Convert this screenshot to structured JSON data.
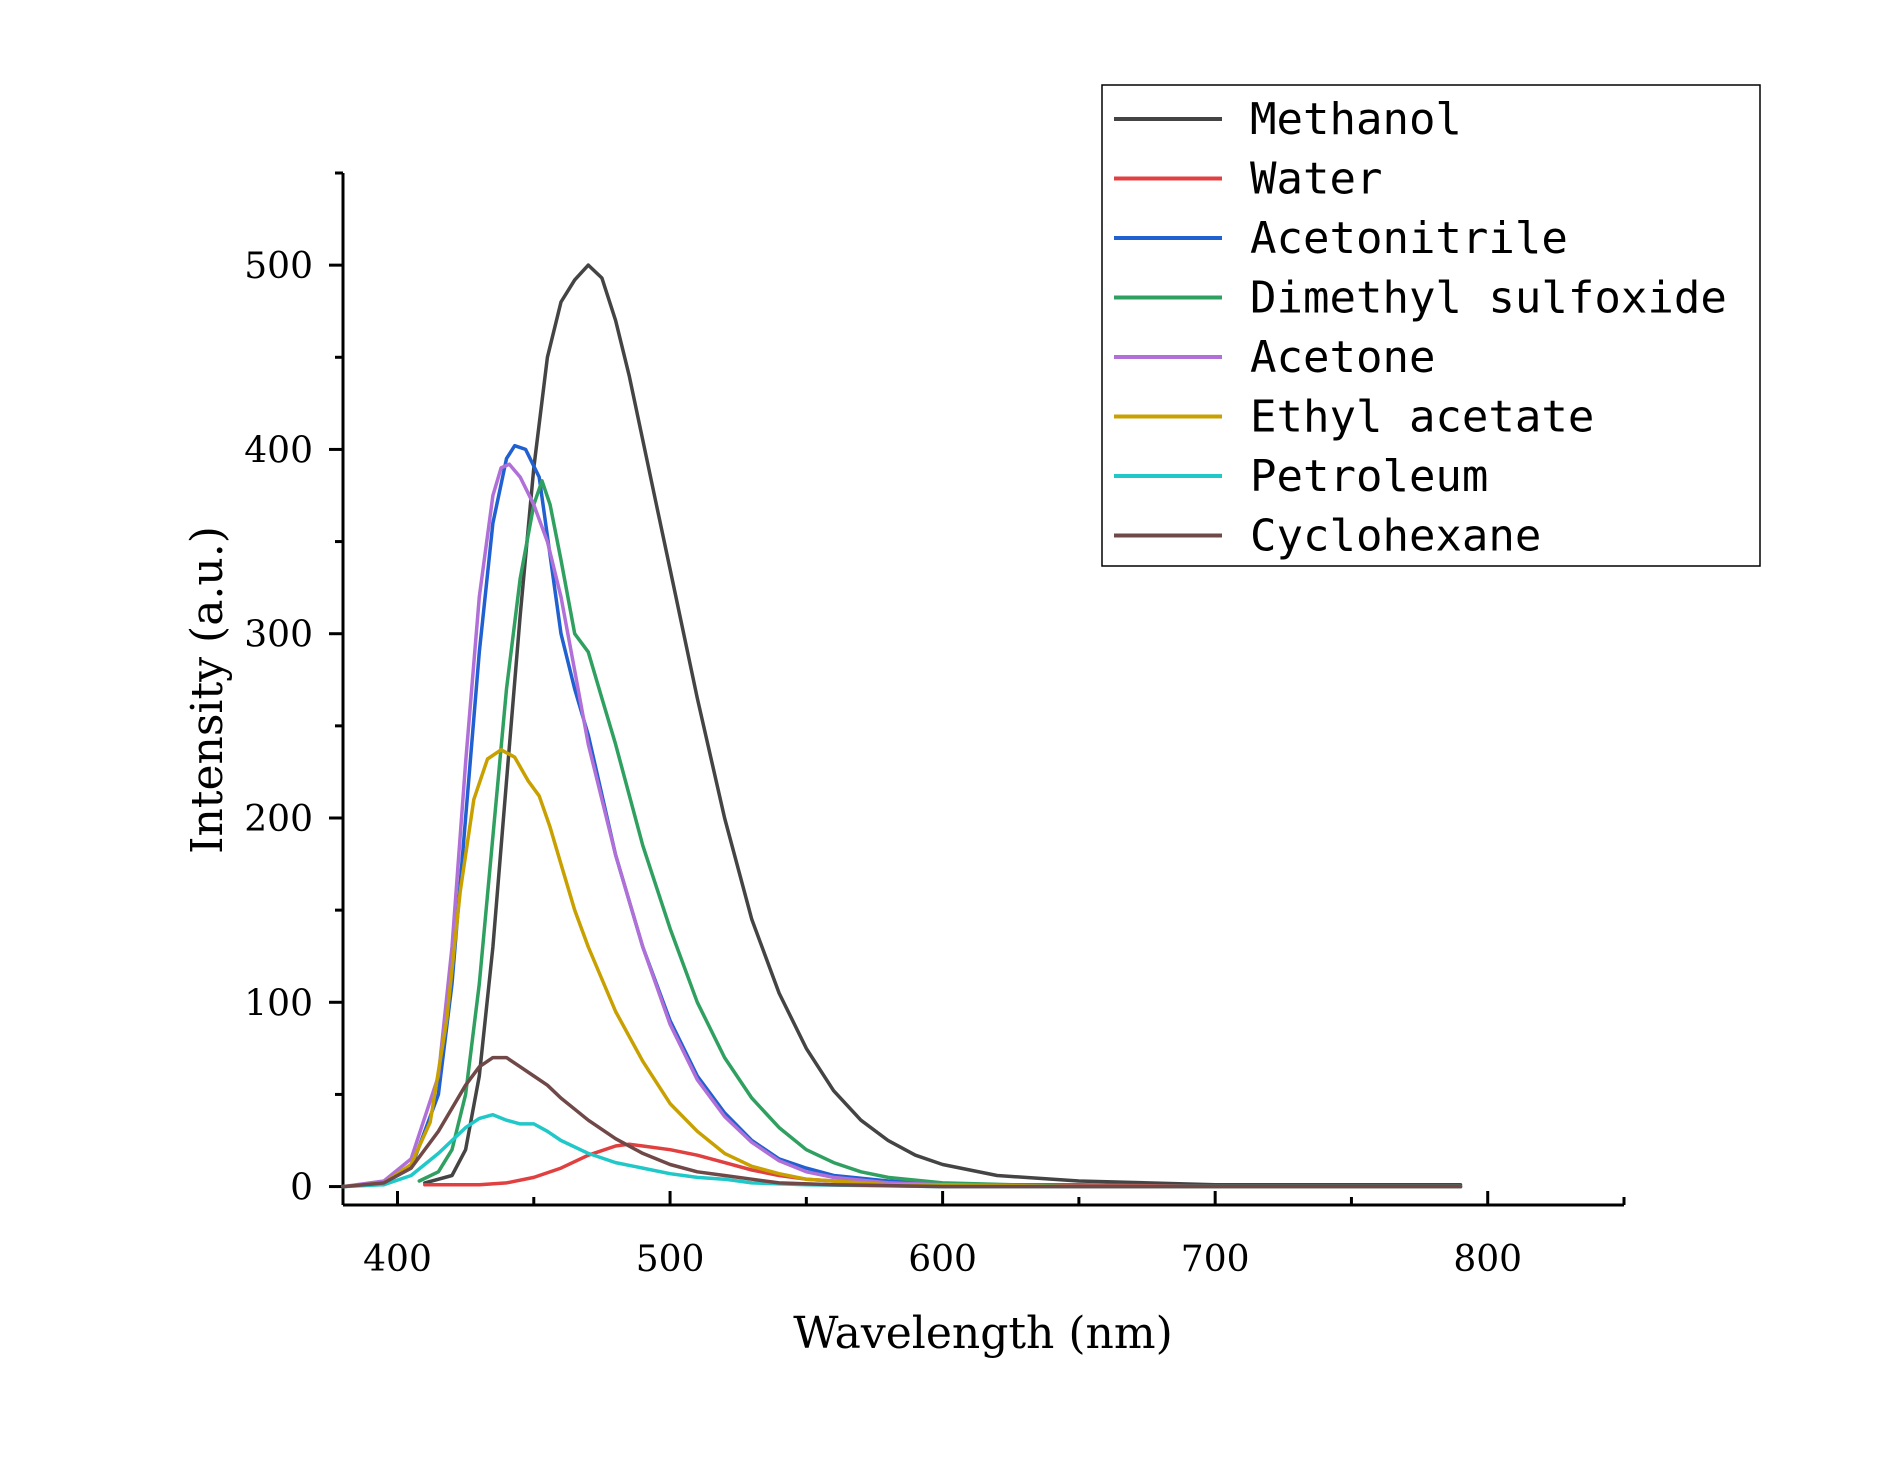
{
  "chart_data": {
    "type": "line",
    "title": "",
    "xlabel": "Wavelength (nm)",
    "ylabel": "Intensity (a.u.)",
    "xlim": [
      380,
      850
    ],
    "ylim": [
      -10,
      550
    ],
    "xticks": [
      400,
      500,
      600,
      700,
      800
    ],
    "xtick_labels": [
      "400",
      "500",
      "600",
      "700",
      "800"
    ],
    "yticks": [
      0,
      100,
      200,
      300,
      400,
      500
    ],
    "ytick_labels": [
      "0",
      "100",
      "200",
      "300",
      "400",
      "500"
    ],
    "grid": false,
    "legend_position": "top-right",
    "series": [
      {
        "name": "Methanol",
        "color": "#444444",
        "points": [
          [
            410,
            2
          ],
          [
            420,
            6
          ],
          [
            425,
            20
          ],
          [
            430,
            60
          ],
          [
            435,
            130
          ],
          [
            440,
            220
          ],
          [
            445,
            310
          ],
          [
            450,
            390
          ],
          [
            455,
            450
          ],
          [
            460,
            480
          ],
          [
            465,
            492
          ],
          [
            470,
            500
          ],
          [
            475,
            493
          ],
          [
            480,
            470
          ],
          [
            485,
            440
          ],
          [
            490,
            405
          ],
          [
            495,
            370
          ],
          [
            500,
            335
          ],
          [
            510,
            265
          ],
          [
            520,
            200
          ],
          [
            530,
            145
          ],
          [
            540,
            105
          ],
          [
            550,
            75
          ],
          [
            560,
            52
          ],
          [
            570,
            36
          ],
          [
            580,
            25
          ],
          [
            590,
            17
          ],
          [
            600,
            12
          ],
          [
            620,
            6
          ],
          [
            650,
            3
          ],
          [
            700,
            1
          ],
          [
            750,
            1
          ],
          [
            790,
            1
          ]
        ]
      },
      {
        "name": "Water",
        "color": "#e04040",
        "points": [
          [
            410,
            1
          ],
          [
            420,
            1
          ],
          [
            430,
            1
          ],
          [
            440,
            2
          ],
          [
            450,
            5
          ],
          [
            460,
            10
          ],
          [
            470,
            17
          ],
          [
            480,
            22
          ],
          [
            485,
            23
          ],
          [
            490,
            22
          ],
          [
            500,
            20
          ],
          [
            510,
            17
          ],
          [
            520,
            13
          ],
          [
            530,
            9
          ],
          [
            540,
            6
          ],
          [
            550,
            4
          ],
          [
            560,
            3
          ],
          [
            580,
            1
          ],
          [
            600,
            1
          ],
          [
            650,
            1
          ],
          [
            700,
            0
          ],
          [
            790,
            0
          ]
        ]
      },
      {
        "name": "Acetonitrile",
        "color": "#2060d0",
        "points": [
          [
            380,
            0
          ],
          [
            395,
            2
          ],
          [
            405,
            10
          ],
          [
            415,
            50
          ],
          [
            420,
            110
          ],
          [
            425,
            200
          ],
          [
            430,
            290
          ],
          [
            435,
            360
          ],
          [
            440,
            395
          ],
          [
            443,
            402
          ],
          [
            447,
            400
          ],
          [
            452,
            385
          ],
          [
            460,
            300
          ],
          [
            465,
            270
          ],
          [
            470,
            245
          ],
          [
            480,
            180
          ],
          [
            490,
            130
          ],
          [
            500,
            90
          ],
          [
            510,
            60
          ],
          [
            520,
            40
          ],
          [
            530,
            25
          ],
          [
            540,
            15
          ],
          [
            550,
            10
          ],
          [
            560,
            6
          ],
          [
            580,
            3
          ],
          [
            600,
            1
          ],
          [
            650,
            0
          ],
          [
            700,
            0
          ],
          [
            790,
            0
          ]
        ]
      },
      {
        "name": "Dimethyl sulfoxide",
        "color": "#30a060",
        "points": [
          [
            408,
            3
          ],
          [
            415,
            8
          ],
          [
            420,
            20
          ],
          [
            425,
            50
          ],
          [
            430,
            110
          ],
          [
            435,
            190
          ],
          [
            440,
            270
          ],
          [
            445,
            330
          ],
          [
            450,
            370
          ],
          [
            453,
            383
          ],
          [
            456,
            370
          ],
          [
            460,
            340
          ],
          [
            465,
            300
          ],
          [
            470,
            290
          ],
          [
            475,
            265
          ],
          [
            480,
            240
          ],
          [
            490,
            185
          ],
          [
            500,
            140
          ],
          [
            510,
            100
          ],
          [
            520,
            70
          ],
          [
            530,
            48
          ],
          [
            540,
            32
          ],
          [
            550,
            20
          ],
          [
            560,
            13
          ],
          [
            570,
            8
          ],
          [
            580,
            5
          ],
          [
            600,
            2
          ],
          [
            650,
            0
          ],
          [
            700,
            0
          ],
          [
            790,
            0
          ]
        ]
      },
      {
        "name": "Acetone",
        "color": "#b070d8",
        "points": [
          [
            380,
            0
          ],
          [
            395,
            3
          ],
          [
            405,
            15
          ],
          [
            415,
            60
          ],
          [
            420,
            130
          ],
          [
            425,
            230
          ],
          [
            430,
            320
          ],
          [
            435,
            375
          ],
          [
            438,
            390
          ],
          [
            441,
            392
          ],
          [
            445,
            385
          ],
          [
            450,
            370
          ],
          [
            455,
            350
          ],
          [
            460,
            320
          ],
          [
            465,
            280
          ],
          [
            470,
            240
          ],
          [
            480,
            180
          ],
          [
            490,
            130
          ],
          [
            500,
            88
          ],
          [
            510,
            58
          ],
          [
            520,
            38
          ],
          [
            530,
            24
          ],
          [
            540,
            14
          ],
          [
            550,
            8
          ],
          [
            560,
            5
          ],
          [
            580,
            2
          ],
          [
            600,
            1
          ],
          [
            650,
            0
          ],
          [
            700,
            0
          ],
          [
            790,
            0
          ]
        ]
      },
      {
        "name": "Ethyl acetate",
        "color": "#c8a000",
        "points": [
          [
            380,
            0
          ],
          [
            395,
            2
          ],
          [
            405,
            12
          ],
          [
            412,
            35
          ],
          [
            418,
            90
          ],
          [
            423,
            160
          ],
          [
            428,
            210
          ],
          [
            433,
            232
          ],
          [
            438,
            237
          ],
          [
            443,
            233
          ],
          [
            448,
            220
          ],
          [
            452,
            212
          ],
          [
            456,
            195
          ],
          [
            460,
            175
          ],
          [
            465,
            150
          ],
          [
            470,
            130
          ],
          [
            480,
            95
          ],
          [
            490,
            68
          ],
          [
            500,
            45
          ],
          [
            510,
            30
          ],
          [
            520,
            18
          ],
          [
            530,
            11
          ],
          [
            540,
            7
          ],
          [
            550,
            4
          ],
          [
            560,
            3
          ],
          [
            580,
            1
          ],
          [
            600,
            1
          ],
          [
            650,
            0
          ],
          [
            700,
            0
          ],
          [
            790,
            0
          ]
        ]
      },
      {
        "name": "Petroleum",
        "color": "#20c8c8",
        "points": [
          [
            380,
            0
          ],
          [
            395,
            1
          ],
          [
            405,
            6
          ],
          [
            415,
            18
          ],
          [
            425,
            32
          ],
          [
            430,
            37
          ],
          [
            435,
            39
          ],
          [
            440,
            36
          ],
          [
            445,
            34
          ],
          [
            450,
            34
          ],
          [
            455,
            30
          ],
          [
            460,
            25
          ],
          [
            470,
            18
          ],
          [
            480,
            13
          ],
          [
            490,
            10
          ],
          [
            500,
            7
          ],
          [
            510,
            5
          ],
          [
            520,
            4
          ],
          [
            530,
            2
          ],
          [
            550,
            1
          ],
          [
            600,
            0
          ],
          [
            700,
            0
          ],
          [
            790,
            0
          ]
        ]
      },
      {
        "name": "Cyclohexane",
        "color": "#704848",
        "points": [
          [
            380,
            0
          ],
          [
            395,
            2
          ],
          [
            405,
            10
          ],
          [
            415,
            30
          ],
          [
            425,
            55
          ],
          [
            430,
            65
          ],
          [
            435,
            70
          ],
          [
            440,
            70
          ],
          [
            445,
            65
          ],
          [
            450,
            60
          ],
          [
            455,
            55
          ],
          [
            460,
            48
          ],
          [
            465,
            42
          ],
          [
            470,
            36
          ],
          [
            480,
            26
          ],
          [
            490,
            18
          ],
          [
            500,
            12
          ],
          [
            510,
            8
          ],
          [
            520,
            6
          ],
          [
            530,
            4
          ],
          [
            540,
            2
          ],
          [
            560,
            1
          ],
          [
            600,
            0
          ],
          [
            700,
            0
          ],
          [
            790,
            0
          ]
        ]
      }
    ]
  }
}
